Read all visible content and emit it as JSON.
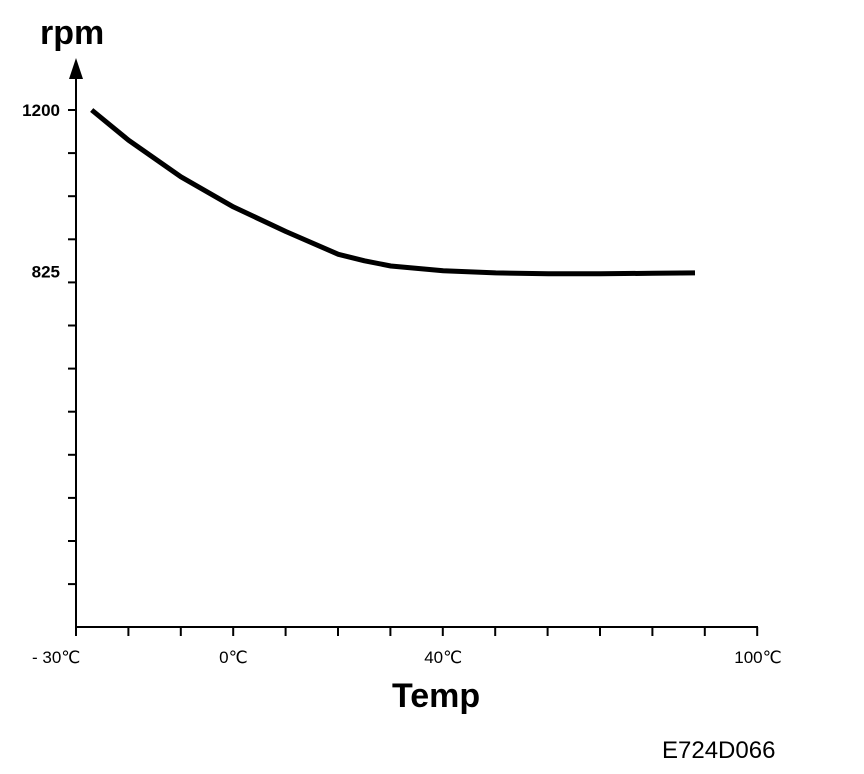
{
  "chart_data": {
    "type": "line",
    "ylabel": "rpm",
    "xlabel": "Temp",
    "code": "E724D066",
    "y_tick_labels": [
      {
        "value": 1200,
        "label": "1200"
      },
      {
        "value": 825,
        "label": "825"
      }
    ],
    "x_tick_labels": [
      {
        "value": -30,
        "label": "- 30℃"
      },
      {
        "value": 0,
        "label": "0℃"
      },
      {
        "value": 40,
        "label": "40℃"
      },
      {
        "value": 100,
        "label": "100℃"
      }
    ],
    "xlim": [
      -30,
      100
    ],
    "ylim": [
      0,
      1200
    ],
    "series": [
      {
        "x": [
          -27,
          -20,
          -10,
          0,
          10,
          20,
          25,
          30,
          40,
          50,
          60,
          70,
          80,
          88
        ],
        "y": [
          1200,
          1130,
          1045,
          975,
          918,
          865,
          850,
          838,
          827,
          822,
          820,
          820,
          821,
          822
        ]
      }
    ],
    "color": "#000000"
  }
}
